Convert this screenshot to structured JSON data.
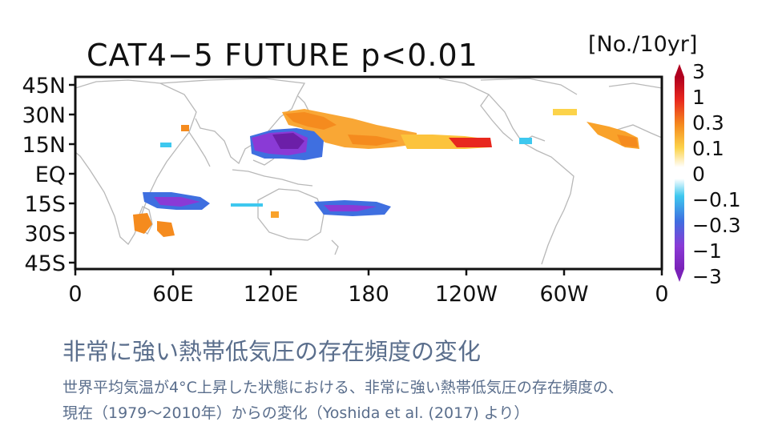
{
  "map": {
    "title": "CAT4−5  FUTURE  p<0.01",
    "unit_label": "[No./10yr]",
    "lat_labels": [
      "45N",
      "30N",
      "15N",
      "EQ",
      "15S",
      "30S",
      "45S"
    ],
    "lon_labels": [
      "0",
      "60E",
      "120E",
      "180",
      "120W",
      "60W",
      "0"
    ],
    "colorbar": {
      "labels": [
        "3",
        "1",
        "0.3",
        "0.1",
        "0",
        "−0.1",
        "−0.3",
        "−1",
        "−3"
      ],
      "colors": [
        "#b0001f",
        "#e8281e",
        "#f58b1e",
        "#fcd34a",
        "#ffffff",
        "#3ec8ef",
        "#3f6fe0",
        "#8a3ad6",
        "#7a22b8"
      ]
    },
    "regions": [
      {
        "name": "western-north-pacific-increase",
        "sign": "increase"
      },
      {
        "name": "central-north-pacific-increase",
        "sign": "increase"
      },
      {
        "name": "north-atlantic-increase",
        "sign": "increase"
      },
      {
        "name": "south-china-sea-decrease",
        "sign": "decrease"
      },
      {
        "name": "south-indian-ocean-decrease",
        "sign": "decrease"
      },
      {
        "name": "south-pacific-decrease",
        "sign": "decrease"
      },
      {
        "name": "madagascar-increase",
        "sign": "increase"
      }
    ]
  },
  "caption": {
    "title": "非常に強い熱帯低気圧の存在頻度の変化",
    "line1": "世界平均気温が4°C上昇した状態における、非常に強い熱帯低気圧の存在頻度の、",
    "line2": "現在（1979〜2010年）からの変化（Yoshida et al. (2017) より）"
  }
}
